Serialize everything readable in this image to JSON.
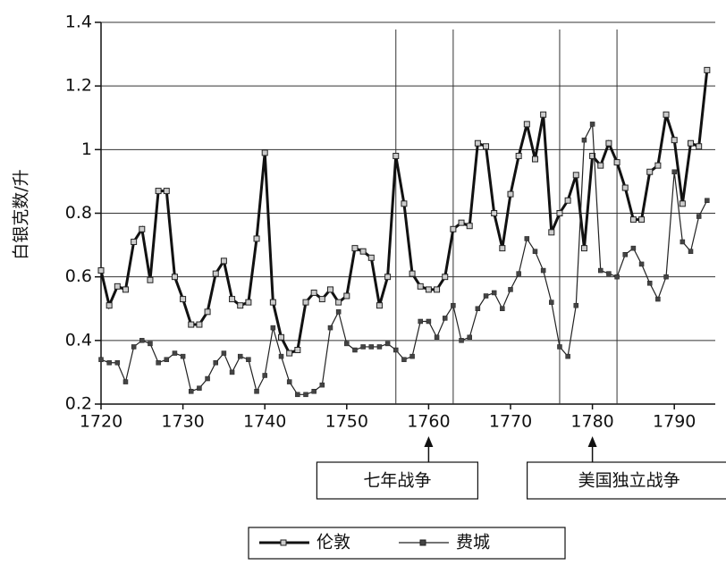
{
  "chart_data": {
    "type": "line",
    "y_label": "白银克数/升",
    "x": [
      1720,
      1721,
      1722,
      1723,
      1724,
      1725,
      1726,
      1727,
      1728,
      1729,
      1730,
      1731,
      1732,
      1733,
      1734,
      1735,
      1736,
      1737,
      1738,
      1739,
      1740,
      1741,
      1742,
      1743,
      1744,
      1745,
      1746,
      1747,
      1748,
      1749,
      1750,
      1751,
      1752,
      1753,
      1754,
      1755,
      1756,
      1757,
      1758,
      1759,
      1760,
      1761,
      1762,
      1763,
      1764,
      1765,
      1766,
      1767,
      1768,
      1769,
      1770,
      1771,
      1772,
      1773,
      1774,
      1775,
      1776,
      1777,
      1778,
      1779,
      1780,
      1781,
      1782,
      1783,
      1784,
      1785,
      1786,
      1787,
      1788,
      1789,
      1790,
      1791,
      1792,
      1793,
      1794
    ],
    "series": [
      {
        "name": "伦敦",
        "color": "#111111",
        "marker_fill": "#cccccc",
        "values": [
          0.62,
          0.51,
          0.57,
          0.56,
          0.71,
          0.75,
          0.59,
          0.87,
          0.87,
          0.6,
          0.53,
          0.45,
          0.45,
          0.49,
          0.61,
          0.65,
          0.53,
          0.51,
          0.52,
          0.72,
          0.99,
          0.52,
          0.41,
          0.36,
          0.37,
          0.52,
          0.55,
          0.53,
          0.56,
          0.52,
          0.54,
          0.69,
          0.68,
          0.66,
          0.51,
          0.6,
          0.98,
          0.83,
          0.61,
          0.57,
          0.56,
          0.56,
          0.6,
          0.75,
          0.77,
          0.76,
          1.02,
          1.01,
          0.8,
          0.69,
          0.86,
          0.98,
          1.08,
          0.97,
          1.11,
          0.74,
          0.8,
          0.84,
          0.92,
          0.69,
          0.98,
          0.95,
          1.02,
          0.96,
          0.88,
          0.78,
          0.78,
          0.93,
          0.95,
          1.11,
          1.03,
          0.83,
          1.02,
          1.01,
          1.25
        ]
      },
      {
        "name": "费城",
        "color": "#222222",
        "marker_fill": "#444444",
        "values": [
          0.34,
          0.33,
          0.33,
          0.27,
          0.38,
          0.4,
          0.39,
          0.33,
          0.34,
          0.36,
          0.35,
          0.24,
          0.25,
          0.28,
          0.33,
          0.36,
          0.3,
          0.35,
          0.34,
          0.24,
          0.29,
          0.44,
          0.35,
          0.27,
          0.23,
          0.23,
          0.24,
          0.26,
          0.44,
          0.49,
          0.39,
          0.37,
          0.38,
          0.38,
          0.38,
          0.39,
          0.37,
          0.34,
          0.35,
          0.46,
          0.46,
          0.41,
          0.47,
          0.51,
          0.4,
          0.41,
          0.5,
          0.54,
          0.55,
          0.5,
          0.56,
          0.61,
          0.72,
          0.68,
          0.62,
          0.52,
          0.38,
          0.35,
          0.51,
          1.03,
          1.08,
          0.62,
          0.61,
          0.6,
          0.67,
          0.69,
          0.64,
          0.58,
          0.53,
          0.6,
          0.93,
          0.71,
          0.68,
          0.79,
          0.84
        ]
      }
    ],
    "xlim": [
      1720,
      1795
    ],
    "xticks": [
      1720,
      1730,
      1740,
      1750,
      1760,
      1770,
      1780,
      1790
    ],
    "ylim": [
      0.2,
      1.4
    ],
    "yticks": [
      0.2,
      0.4,
      0.6,
      0.8,
      1,
      1.2,
      1.4
    ],
    "grid": true,
    "vlines": [
      1756,
      1763,
      1776,
      1783
    ],
    "annotations": [
      {
        "text": "七年战争",
        "x": 1760
      },
      {
        "text": "美国独立战争",
        "x": 1780
      }
    ],
    "legend": "bottom"
  }
}
